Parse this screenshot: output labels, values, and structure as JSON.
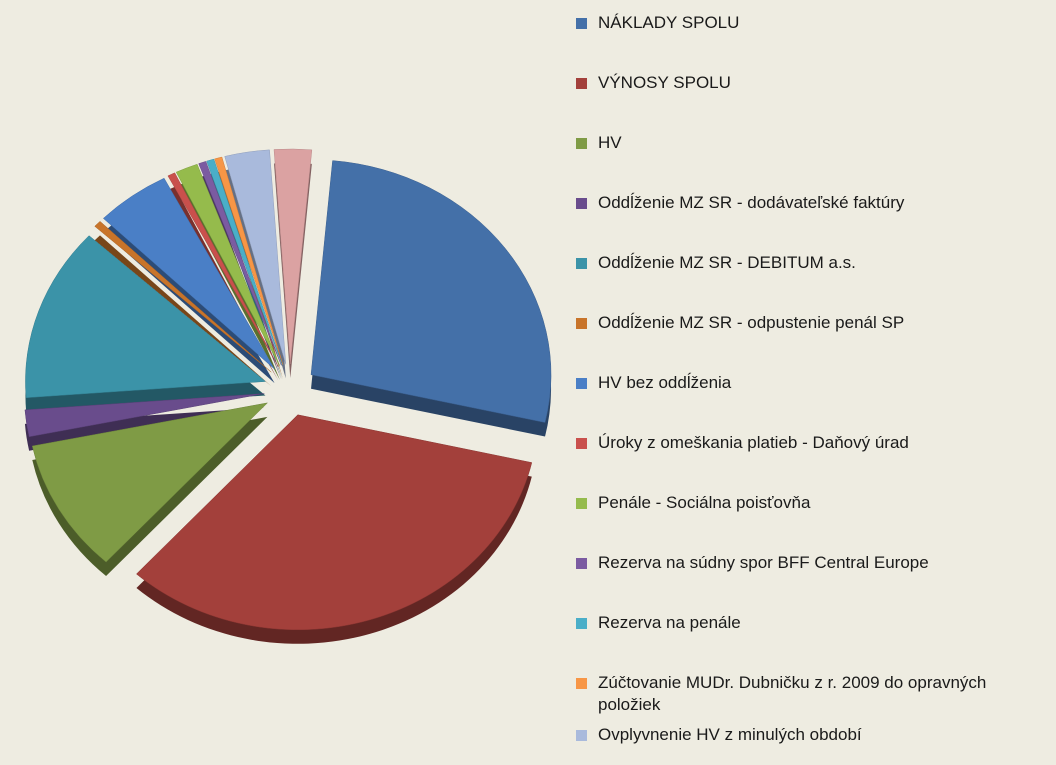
{
  "chart_data": {
    "type": "pie",
    "exploded": true,
    "three_d": true,
    "categories": [
      "NÁKLADY SPOLU",
      "VÝNOSY SPOLU",
      "HV",
      "Oddĺženie MZ SR - dodávateľské faktúry",
      "Oddĺženie MZ SR - DEBITUM a.s.",
      "Oddĺženie MZ SR - odpustenie penál SP",
      "HV bez oddĺženia",
      "Úroky z omeškania platieb - Daňový úrad",
      "Penále - Sociálna poisťovňa",
      "Rezerva na súdny spor BFF Central Europe",
      "Rezerva na penále",
      "Zúčtovanie MUDr. Dubničku z r. 2009 do opravných položiek",
      "Ovplyvnenie HV z minulých období",
      null
    ],
    "values": [
      27,
      33,
      10,
      2,
      13,
      0.5,
      5,
      0.5,
      1.5,
      0.5,
      0.5,
      0.5,
      3,
      2.5
    ],
    "colors": [
      "#4470a8",
      "#a3403b",
      "#7f9b45",
      "#694c8c",
      "#3b93a8",
      "#c8742a",
      "#4a7fc6",
      "#c9504c",
      "#95bb4c",
      "#7b5ba1",
      "#4aaec8",
      "#f79646",
      "#a9badc",
      "#dba2a2"
    ]
  }
}
